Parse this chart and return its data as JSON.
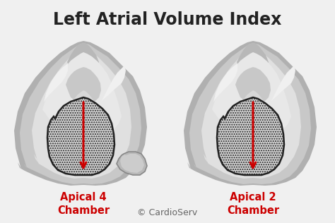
{
  "title": "Left Atrial Volume Index",
  "title_fontsize": 17,
  "title_fontweight": "bold",
  "title_color": "#222222",
  "bg_color": "#f0f0f0",
  "label_left_line1": "Apical 4",
  "label_left_line2": "Chamber",
  "label_right_line1": "Apical 2",
  "label_right_line2": "Chamber",
  "label_color": "#cc0000",
  "label_fontsize": 10.5,
  "label_fontweight": "bold",
  "copyright_text": "© CardioServ",
  "copyright_fontsize": 9,
  "copyright_color": "#666666",
  "arrow_color": "#cc0000",
  "outer_body_color": "#aaaaaa",
  "inner_white_color": "#e8e8e8",
  "atrium_fill": "#cccccc",
  "atrium_edge": "#222222",
  "tube_color": "#bbbbbb"
}
